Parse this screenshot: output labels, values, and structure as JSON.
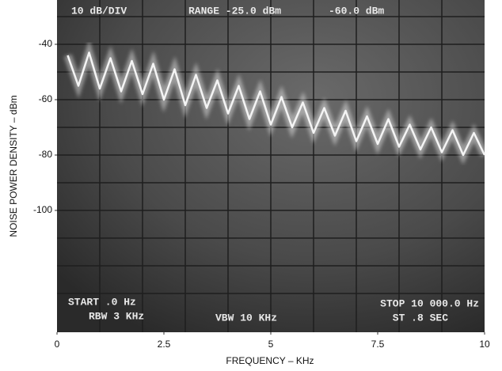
{
  "chart_data": {
    "type": "line",
    "x_label": "FREQUENCY – KHz",
    "y_label": "NOISE POWER DENSITY – dBm",
    "annotations": [
      "10 dB/DIV",
      "RANGE -25.0 dBm",
      "-60.0 dBm",
      "START .0 Hz",
      "RBW 3 KHz",
      "VBW 10 KHz",
      "STOP 10 000.0 Hz",
      "ST .8 SEC"
    ],
    "x": [
      0.25,
      0.5,
      0.75,
      1.0,
      1.25,
      1.5,
      1.75,
      2.0,
      2.25,
      2.5,
      2.75,
      3.0,
      3.25,
      3.5,
      3.75,
      4.0,
      4.25,
      4.5,
      4.75,
      5.0,
      5.25,
      5.5,
      5.75,
      6.0,
      6.25,
      6.5,
      6.75,
      7.0,
      7.25,
      7.5,
      7.75,
      8.0,
      8.25,
      8.5,
      8.75,
      9.0,
      9.25,
      9.5,
      9.75,
      10.0
    ],
    "series": [
      {
        "color": "#f4f4f4",
        "values": [
          -44,
          -55,
          -43,
          -56,
          -45,
          -57,
          -46,
          -58,
          -47,
          -60,
          -49,
          -62,
          -51,
          -63,
          -53,
          -65,
          -55,
          -67,
          -57,
          -69,
          -59,
          -70,
          -61,
          -72,
          -63,
          -73,
          -64,
          -75,
          -66,
          -76,
          -67,
          -77,
          -69,
          -78,
          -70,
          -79,
          -71,
          -80,
          -72,
          -80
        ]
      }
    ],
    "xlim": [
      0,
      10
    ],
    "xticks": [
      0,
      2.5,
      5,
      7.5,
      10
    ],
    "ylim": [
      -144,
      -24
    ],
    "yticks": [
      -40,
      -60,
      -80,
      -100
    ]
  }
}
